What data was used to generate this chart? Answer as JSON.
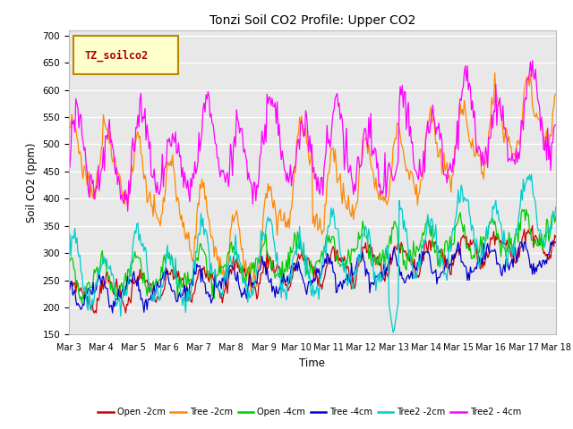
{
  "title": "Tonzi Soil CO2 Profile: Upper CO2",
  "xlabel": "Time",
  "ylabel": "Soil CO2 (ppm)",
  "ylim": [
    150,
    710
  ],
  "yticks": [
    150,
    200,
    250,
    300,
    350,
    400,
    450,
    500,
    550,
    600,
    650,
    700
  ],
  "xtick_labels": [
    "Mar 3",
    "Mar 4",
    "Mar 5",
    "Mar 6",
    "Mar 7",
    "Mar 8",
    "Mar 9",
    "Mar 10",
    "Mar 11",
    "Mar 12",
    "Mar 13",
    "Mar 14",
    "Mar 15",
    "Mar 16",
    "Mar 17",
    "Mar 18"
  ],
  "legend_label": "TZ_soilco2",
  "legend_box_color": "#ffffcc",
  "legend_box_edge": "#bb8800",
  "legend_text_color": "#aa0000",
  "series": [
    {
      "label": "Open -2cm",
      "color": "#cc0000"
    },
    {
      "label": "Tree -2cm",
      "color": "#ff8800"
    },
    {
      "label": "Open -4cm",
      "color": "#00cc00"
    },
    {
      "label": "Tree -4cm",
      "color": "#0000cc"
    },
    {
      "label": "Tree2 -2cm",
      "color": "#00cccc"
    },
    {
      "label": "Tree2 - 4cm",
      "color": "#ff00ff"
    }
  ],
  "n_points": 480
}
